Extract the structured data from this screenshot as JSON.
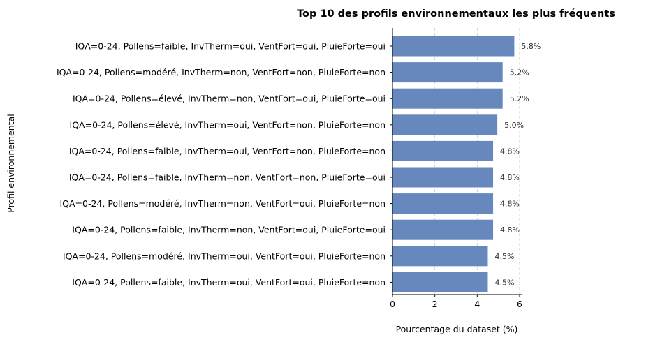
{
  "chart_data": {
    "type": "bar",
    "orientation": "horizontal",
    "title": "Top 10 des profils environnementaux les plus fréquents",
    "xlabel": "Pourcentage du dataset (%)",
    "ylabel": "Profil environnemental",
    "xlim": [
      0,
      6.1
    ],
    "xticks": [
      0,
      2,
      4,
      6
    ],
    "grid": "x-dashed",
    "bar_color": "#6788bc",
    "categories": [
      "IQA=0-24, Pollens=faible, InvTherm=oui, VentFort=oui, PluieForte=oui",
      "IQA=0-24, Pollens=modéré, InvTherm=non, VentFort=non, PluieForte=non",
      "IQA=0-24, Pollens=élevé, InvTherm=non, VentFort=oui, PluieForte=oui",
      "IQA=0-24, Pollens=élevé, InvTherm=oui, VentFort=non, PluieForte=non",
      "IQA=0-24, Pollens=faible, InvTherm=oui, VentFort=non, PluieForte=non",
      "IQA=0-24, Pollens=faible, InvTherm=non, VentFort=non, PluieForte=oui",
      "IQA=0-24, Pollens=modéré, InvTherm=non, VentFort=oui, PluieForte=non",
      "IQA=0-24, Pollens=faible, InvTherm=non, VentFort=oui, PluieForte=oui",
      "IQA=0-24, Pollens=modéré, InvTherm=oui, VentFort=oui, PluieForte=non",
      "IQA=0-24, Pollens=faible, InvTherm=oui, VentFort=oui, PluieForte=non"
    ],
    "values": [
      5.75,
      5.2,
      5.2,
      4.95,
      4.75,
      4.75,
      4.75,
      4.75,
      4.5,
      4.5
    ],
    "data_labels": [
      "5.8%",
      "5.2%",
      "5.2%",
      "5.0%",
      "4.8%",
      "4.8%",
      "4.8%",
      "4.8%",
      "4.5%",
      "4.5%"
    ]
  }
}
